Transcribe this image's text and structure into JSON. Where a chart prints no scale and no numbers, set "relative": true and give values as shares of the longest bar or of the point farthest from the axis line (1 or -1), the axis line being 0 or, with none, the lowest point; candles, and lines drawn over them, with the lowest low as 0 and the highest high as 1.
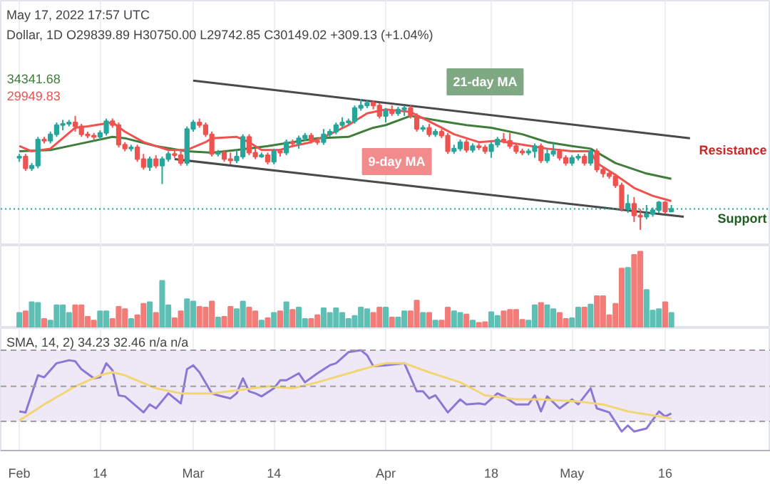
{
  "chart_data": [
    {
      "type": "candlestick",
      "title": "May 17, 2022 17:57 UTC",
      "subtitle": "Dollar, 1D  O29839.89 H30750.00 L29742.85 C30149.02 +309.13 (+1.04%)",
      "relative": true,
      "xlim": [
        "2022-01-29",
        "2022-06-02"
      ],
      "tick_labels": false,
      "grid": "x",
      "x": [
        "2022-02-01",
        "2022-02-02",
        "2022-02-03",
        "2022-02-04",
        "2022-02-05",
        "2022-02-06",
        "2022-02-07",
        "2022-02-08",
        "2022-02-09",
        "2022-02-10",
        "2022-02-11",
        "2022-02-12",
        "2022-02-13",
        "2022-02-14",
        "2022-02-15",
        "2022-02-16",
        "2022-02-17",
        "2022-02-18",
        "2022-02-19",
        "2022-02-20",
        "2022-02-21",
        "2022-02-22",
        "2022-02-23",
        "2022-02-24",
        "2022-02-25",
        "2022-02-26",
        "2022-02-27",
        "2022-02-28",
        "2022-03-01",
        "2022-03-02",
        "2022-03-03",
        "2022-03-04",
        "2022-03-05",
        "2022-03-06",
        "2022-03-07",
        "2022-03-08",
        "2022-03-09",
        "2022-03-10",
        "2022-03-11",
        "2022-03-12",
        "2022-03-13",
        "2022-03-14",
        "2022-03-15",
        "2022-03-16",
        "2022-03-17",
        "2022-03-18",
        "2022-03-19",
        "2022-03-20",
        "2022-03-21",
        "2022-03-22",
        "2022-03-23",
        "2022-03-24",
        "2022-03-25",
        "2022-03-26",
        "2022-03-27",
        "2022-03-28",
        "2022-03-29",
        "2022-03-30",
        "2022-03-31",
        "2022-04-01",
        "2022-04-02",
        "2022-04-03",
        "2022-04-04",
        "2022-04-05",
        "2022-04-06",
        "2022-04-07",
        "2022-04-08",
        "2022-04-09",
        "2022-04-10",
        "2022-04-11",
        "2022-04-12",
        "2022-04-13",
        "2022-04-14",
        "2022-04-15",
        "2022-04-16",
        "2022-04-17",
        "2022-04-18",
        "2022-04-19",
        "2022-04-20",
        "2022-04-21",
        "2022-04-22",
        "2022-04-23",
        "2022-04-24",
        "2022-04-25",
        "2022-04-26",
        "2022-04-27",
        "2022-04-28",
        "2022-04-29",
        "2022-04-30",
        "2022-05-01",
        "2022-05-02",
        "2022-05-03",
        "2022-05-04",
        "2022-05-05",
        "2022-05-06",
        "2022-05-07",
        "2022-05-08",
        "2022-05-09",
        "2022-05-10",
        "2022-05-11",
        "2022-05-12",
        "2022-05-13",
        "2022-05-14",
        "2022-05-15",
        "2022-05-16",
        "2022-05-17"
      ],
      "ohlc": [
        [
          0.55,
          0.58,
          0.52,
          0.56
        ],
        [
          0.56,
          0.58,
          0.45,
          0.47
        ],
        [
          0.47,
          0.51,
          0.45,
          0.49
        ],
        [
          0.49,
          0.71,
          0.47,
          0.69
        ],
        [
          0.69,
          0.71,
          0.66,
          0.68
        ],
        [
          0.68,
          0.75,
          0.66,
          0.73
        ],
        [
          0.73,
          0.82,
          0.71,
          0.8
        ],
        [
          0.8,
          0.84,
          0.76,
          0.81
        ],
        [
          0.81,
          0.84,
          0.79,
          0.82
        ],
        [
          0.82,
          0.87,
          0.75,
          0.79
        ],
        [
          0.79,
          0.81,
          0.71,
          0.73
        ],
        [
          0.73,
          0.75,
          0.7,
          0.72
        ],
        [
          0.72,
          0.74,
          0.69,
          0.71
        ],
        [
          0.71,
          0.76,
          0.69,
          0.74
        ],
        [
          0.74,
          0.85,
          0.72,
          0.83
        ],
        [
          0.83,
          0.85,
          0.78,
          0.8
        ],
        [
          0.8,
          0.82,
          0.63,
          0.65
        ],
        [
          0.65,
          0.67,
          0.6,
          0.62
        ],
        [
          0.62,
          0.65,
          0.6,
          0.63
        ],
        [
          0.63,
          0.65,
          0.52,
          0.54
        ],
        [
          0.54,
          0.58,
          0.46,
          0.48
        ],
        [
          0.48,
          0.56,
          0.45,
          0.54
        ],
        [
          0.54,
          0.57,
          0.47,
          0.49
        ],
        [
          0.49,
          0.56,
          0.35,
          0.54
        ],
        [
          0.54,
          0.6,
          0.52,
          0.58
        ],
        [
          0.58,
          0.61,
          0.55,
          0.57
        ],
        [
          0.57,
          0.6,
          0.49,
          0.51
        ],
        [
          0.51,
          0.79,
          0.49,
          0.77
        ],
        [
          0.77,
          0.84,
          0.75,
          0.82
        ],
        [
          0.82,
          0.85,
          0.78,
          0.8
        ],
        [
          0.8,
          0.82,
          0.71,
          0.73
        ],
        [
          0.73,
          0.75,
          0.56,
          0.58
        ],
        [
          0.58,
          0.61,
          0.56,
          0.59
        ],
        [
          0.59,
          0.61,
          0.52,
          0.54
        ],
        [
          0.54,
          0.59,
          0.5,
          0.53
        ],
        [
          0.53,
          0.61,
          0.51,
          0.56
        ],
        [
          0.56,
          0.73,
          0.54,
          0.71
        ],
        [
          0.71,
          0.73,
          0.57,
          0.59
        ],
        [
          0.59,
          0.62,
          0.54,
          0.56
        ],
        [
          0.56,
          0.59,
          0.55,
          0.57
        ],
        [
          0.57,
          0.59,
          0.5,
          0.52
        ],
        [
          0.52,
          0.62,
          0.5,
          0.6
        ],
        [
          0.6,
          0.62,
          0.56,
          0.59
        ],
        [
          0.59,
          0.69,
          0.57,
          0.67
        ],
        [
          0.67,
          0.69,
          0.64,
          0.66
        ],
        [
          0.66,
          0.72,
          0.62,
          0.7
        ],
        [
          0.7,
          0.74,
          0.68,
          0.72
        ],
        [
          0.72,
          0.74,
          0.66,
          0.68
        ],
        [
          0.68,
          0.7,
          0.65,
          0.67
        ],
        [
          0.67,
          0.77,
          0.65,
          0.73
        ],
        [
          0.73,
          0.77,
          0.71,
          0.75
        ],
        [
          0.75,
          0.82,
          0.73,
          0.8
        ],
        [
          0.8,
          0.86,
          0.78,
          0.82
        ],
        [
          0.82,
          0.85,
          0.8,
          0.83
        ],
        [
          0.83,
          0.95,
          0.81,
          0.93
        ],
        [
          0.93,
          1.0,
          0.91,
          0.95
        ],
        [
          0.95,
          0.99,
          0.93,
          0.97
        ],
        [
          0.97,
          0.99,
          0.92,
          0.95
        ],
        [
          0.95,
          0.97,
          0.85,
          0.87
        ],
        [
          0.87,
          0.93,
          0.82,
          0.91
        ],
        [
          0.91,
          0.95,
          0.87,
          0.89
        ],
        [
          0.89,
          0.94,
          0.87,
          0.92
        ],
        [
          0.92,
          0.95,
          0.87,
          0.93
        ],
        [
          0.93,
          0.95,
          0.85,
          0.87
        ],
        [
          0.87,
          0.89,
          0.75,
          0.77
        ],
        [
          0.77,
          0.8,
          0.75,
          0.78
        ],
        [
          0.78,
          0.81,
          0.71,
          0.73
        ],
        [
          0.73,
          0.77,
          0.71,
          0.75
        ],
        [
          0.75,
          0.77,
          0.7,
          0.72
        ],
        [
          0.72,
          0.74,
          0.58,
          0.6
        ],
        [
          0.6,
          0.65,
          0.58,
          0.62
        ],
        [
          0.62,
          0.69,
          0.6,
          0.67
        ],
        [
          0.67,
          0.69,
          0.59,
          0.61
        ],
        [
          0.61,
          0.66,
          0.59,
          0.64
        ],
        [
          0.64,
          0.66,
          0.61,
          0.63
        ],
        [
          0.63,
          0.65,
          0.58,
          0.6
        ],
        [
          0.6,
          0.67,
          0.55,
          0.65
        ],
        [
          0.65,
          0.71,
          0.63,
          0.69
        ],
        [
          0.69,
          0.74,
          0.66,
          0.68
        ],
        [
          0.68,
          0.74,
          0.62,
          0.64
        ],
        [
          0.64,
          0.66,
          0.58,
          0.6
        ],
        [
          0.6,
          0.62,
          0.57,
          0.59
        ],
        [
          0.59,
          0.62,
          0.57,
          0.6
        ],
        [
          0.6,
          0.66,
          0.55,
          0.64
        ],
        [
          0.64,
          0.66,
          0.51,
          0.53
        ],
        [
          0.53,
          0.62,
          0.51,
          0.58
        ],
        [
          0.58,
          0.66,
          0.56,
          0.6
        ],
        [
          0.6,
          0.62,
          0.53,
          0.55
        ],
        [
          0.55,
          0.57,
          0.49,
          0.51
        ],
        [
          0.51,
          0.57,
          0.49,
          0.55
        ],
        [
          0.55,
          0.58,
          0.53,
          0.56
        ],
        [
          0.56,
          0.58,
          0.49,
          0.51
        ],
        [
          0.51,
          0.62,
          0.49,
          0.6
        ],
        [
          0.6,
          0.62,
          0.44,
          0.46
        ],
        [
          0.46,
          0.48,
          0.4,
          0.43
        ],
        [
          0.43,
          0.45,
          0.39,
          0.41
        ],
        [
          0.41,
          0.43,
          0.32,
          0.34
        ],
        [
          0.34,
          0.36,
          0.14,
          0.16
        ],
        [
          0.16,
          0.27,
          0.13,
          0.2
        ],
        [
          0.2,
          0.25,
          0.06,
          0.11
        ],
        [
          0.11,
          0.16,
          0.0,
          0.1
        ],
        [
          0.1,
          0.19,
          0.08,
          0.12
        ],
        [
          0.12,
          0.17,
          0.1,
          0.15
        ],
        [
          0.15,
          0.22,
          0.13,
          0.21
        ],
        [
          0.21,
          0.22,
          0.12,
          0.14
        ],
        [
          0.14,
          0.19,
          0.14,
          0.16
        ]
      ],
      "colors": [
        "#26a69a",
        "#ef5350",
        "#26a69a",
        "#26a69a",
        "#ef5350",
        "#26a69a",
        "#26a69a",
        "#26a69a",
        "#26a69a",
        "#ef5350",
        "#ef5350",
        "#ef5350",
        "#ef5350",
        "#26a69a",
        "#26a69a",
        "#ef5350",
        "#ef5350",
        "#ef5350",
        "#26a69a",
        "#ef5350",
        "#ef5350",
        "#26a69a",
        "#ef5350",
        "#26a69a",
        "#26a69a",
        "#ef5350",
        "#ef5350",
        "#26a69a",
        "#26a69a",
        "#ef5350",
        "#ef5350",
        "#ef5350",
        "#26a69a",
        "#ef5350",
        "#ef5350",
        "#26a69a",
        "#26a69a",
        "#ef5350",
        "#ef5350",
        "#26a69a",
        "#ef5350",
        "#26a69a",
        "#ef5350",
        "#26a69a",
        "#ef5350",
        "#26a69a",
        "#26a69a",
        "#ef5350",
        "#ef5350",
        "#26a69a",
        "#26a69a",
        "#26a69a",
        "#26a69a",
        "#26a69a",
        "#26a69a",
        "#26a69a",
        "#26a69a",
        "#ef5350",
        "#ef5350",
        "#26a69a",
        "#ef5350",
        "#26a69a",
        "#26a69a",
        "#ef5350",
        "#ef5350",
        "#26a69a",
        "#ef5350",
        "#26a69a",
        "#ef5350",
        "#ef5350",
        "#26a69a",
        "#26a69a",
        "#ef5350",
        "#26a69a",
        "#ef5350",
        "#ef5350",
        "#26a69a",
        "#26a69a",
        "#ef5350",
        "#ef5350",
        "#ef5350",
        "#ef5350",
        "#26a69a",
        "#26a69a",
        "#ef5350",
        "#26a69a",
        "#26a69a",
        "#ef5350",
        "#ef5350",
        "#26a69a",
        "#26a69a",
        "#ef5350",
        "#26a69a",
        "#ef5350",
        "#ef5350",
        "#ef5350",
        "#ef5350",
        "#ef5350",
        "#26a69a",
        "#ef5350",
        "#ef5350",
        "#26a69a",
        "#26a69a",
        "#26a69a",
        "#ef5350",
        "#26a69a"
      ],
      "series": [
        {
          "type": "line",
          "color": "#3f7d3a",
          "x": [
            "2022-02-01",
            "2022-02-06",
            "2022-02-10",
            "2022-02-16",
            "2022-02-18",
            "2022-02-23",
            "2022-02-28",
            "2022-03-04",
            "2022-03-08",
            "2022-03-13",
            "2022-03-17",
            "2022-03-21",
            "2022-03-26",
            "2022-03-30",
            "2022-04-01",
            "2022-04-05",
            "2022-04-10",
            "2022-04-14",
            "2022-04-18",
            "2022-04-23",
            "2022-04-27",
            "2022-05-01",
            "2022-05-04",
            "2022-05-08",
            "2022-05-13",
            "2022-05-17"
          ],
          "values": [
            0.6,
            0.61,
            0.65,
            0.71,
            0.7,
            0.64,
            0.6,
            0.59,
            0.61,
            0.64,
            0.67,
            0.7,
            0.71,
            0.78,
            0.8,
            0.87,
            0.83,
            0.8,
            0.78,
            0.73,
            0.67,
            0.64,
            0.62,
            0.51,
            0.43,
            0.39
          ]
        },
        {
          "type": "line",
          "color": "#f0524f",
          "x": [
            "2022-02-01",
            "2022-02-03",
            "2022-02-06",
            "2022-02-10",
            "2022-02-12",
            "2022-02-16",
            "2022-02-18",
            "2022-02-21",
            "2022-02-25",
            "2022-02-28",
            "2022-03-03",
            "2022-03-04",
            "2022-03-08",
            "2022-03-10",
            "2022-03-12",
            "2022-03-15",
            "2022-03-17",
            "2022-03-20",
            "2022-03-23",
            "2022-03-26",
            "2022-03-29",
            "2022-04-01",
            "2022-04-05",
            "2022-04-10",
            "2022-04-12",
            "2022-04-16",
            "2022-04-19",
            "2022-04-23",
            "2022-04-27",
            "2022-05-01",
            "2022-05-04",
            "2022-05-05",
            "2022-05-08",
            "2022-05-11",
            "2022-05-14",
            "2022-05-17"
          ],
          "values": [
            0.64,
            0.6,
            0.62,
            0.78,
            0.79,
            0.82,
            0.75,
            0.67,
            0.61,
            0.61,
            0.67,
            0.7,
            0.71,
            0.67,
            0.61,
            0.61,
            0.64,
            0.67,
            0.73,
            0.8,
            0.89,
            0.92,
            0.9,
            0.78,
            0.73,
            0.67,
            0.68,
            0.65,
            0.62,
            0.6,
            0.6,
            0.51,
            0.42,
            0.32,
            0.26,
            0.22
          ]
        },
        {
          "type": "line",
          "color": "#4a4a4a",
          "x": [
            "2022-03-01",
            "2022-05-20"
          ],
          "values": [
            1.14,
            0.7
          ]
        },
        {
          "type": "line",
          "color": "#4a4a4a",
          "x": [
            "2022-02-26",
            "2022-05-19"
          ],
          "values": [
            0.54,
            0.1
          ]
        }
      ],
      "ref_lines": [
        {
          "axis": "y",
          "value": 0.16,
          "color": "#26a69a",
          "line_style": "dotted"
        }
      ],
      "xticks": [
        {
          "value": "2022-02-01",
          "label": null
        },
        {
          "value": "2022-02-14",
          "label": null
        },
        {
          "value": "2022-03-01",
          "label": null
        },
        {
          "value": "2022-03-14",
          "label": null
        },
        {
          "value": "2022-04-01",
          "label": null
        },
        {
          "value": "2022-04-18",
          "label": null
        },
        {
          "value": "2022-05-01",
          "label": null
        },
        {
          "value": "2022-05-16",
          "label": null
        }
      ],
      "annotations": [
        "34341.68",
        "29949.83",
        "Resistance",
        "Support",
        "9-day MA",
        "21-day MA"
      ]
    },
    {
      "type": "bar",
      "relative": true,
      "xlim": [
        "2022-01-29",
        "2022-06-02"
      ],
      "tick_labels": false,
      "grid": "x",
      "xticks": [
        {
          "value": "2022-02-01",
          "label": null
        },
        {
          "value": "2022-02-14",
          "label": null
        },
        {
          "value": "2022-03-01",
          "label": null
        },
        {
          "value": "2022-03-14",
          "label": null
        },
        {
          "value": "2022-04-01",
          "label": null
        },
        {
          "value": "2022-04-18",
          "label": null
        },
        {
          "value": "2022-05-01",
          "label": null
        },
        {
          "value": "2022-05-16",
          "label": null
        }
      ],
      "x": [
        "2022-02-01",
        "2022-02-02",
        "2022-02-03",
        "2022-02-04",
        "2022-02-05",
        "2022-02-06",
        "2022-02-07",
        "2022-02-08",
        "2022-02-09",
        "2022-02-10",
        "2022-02-11",
        "2022-02-12",
        "2022-02-13",
        "2022-02-14",
        "2022-02-15",
        "2022-02-16",
        "2022-02-17",
        "2022-02-18",
        "2022-02-19",
        "2022-02-20",
        "2022-02-21",
        "2022-02-22",
        "2022-02-23",
        "2022-02-24",
        "2022-02-25",
        "2022-02-26",
        "2022-02-27",
        "2022-02-28",
        "2022-03-01",
        "2022-03-02",
        "2022-03-03",
        "2022-03-04",
        "2022-03-05",
        "2022-03-06",
        "2022-03-07",
        "2022-03-08",
        "2022-03-09",
        "2022-03-10",
        "2022-03-11",
        "2022-03-12",
        "2022-03-13",
        "2022-03-14",
        "2022-03-15",
        "2022-03-16",
        "2022-03-17",
        "2022-03-18",
        "2022-03-19",
        "2022-03-20",
        "2022-03-21",
        "2022-03-22",
        "2022-03-23",
        "2022-03-24",
        "2022-03-25",
        "2022-03-26",
        "2022-03-27",
        "2022-03-28",
        "2022-03-29",
        "2022-03-30",
        "2022-03-31",
        "2022-04-01",
        "2022-04-02",
        "2022-04-03",
        "2022-04-04",
        "2022-04-05",
        "2022-04-06",
        "2022-04-07",
        "2022-04-08",
        "2022-04-09",
        "2022-04-10",
        "2022-04-11",
        "2022-04-12",
        "2022-04-13",
        "2022-04-14",
        "2022-04-15",
        "2022-04-16",
        "2022-04-17",
        "2022-04-18",
        "2022-04-19",
        "2022-04-20",
        "2022-04-21",
        "2022-04-22",
        "2022-04-23",
        "2022-04-24",
        "2022-04-25",
        "2022-04-26",
        "2022-04-27",
        "2022-04-28",
        "2022-04-29",
        "2022-04-30",
        "2022-05-01",
        "2022-05-02",
        "2022-05-03",
        "2022-05-04",
        "2022-05-05",
        "2022-05-06",
        "2022-05-07",
        "2022-05-08",
        "2022-05-09",
        "2022-05-10",
        "2022-05-11",
        "2022-05-12",
        "2022-05-13",
        "2022-05-14",
        "2022-05-15",
        "2022-05-16",
        "2022-05-17"
      ],
      "values": [
        0.2,
        0.22,
        0.34,
        0.33,
        0.12,
        0.1,
        0.3,
        0.3,
        0.2,
        0.3,
        0.3,
        0.15,
        0.1,
        0.22,
        0.22,
        0.12,
        0.28,
        0.25,
        0.12,
        0.17,
        0.32,
        0.34,
        0.2,
        0.62,
        0.3,
        0.13,
        0.22,
        0.38,
        0.35,
        0.28,
        0.27,
        0.35,
        0.14,
        0.15,
        0.28,
        0.25,
        0.35,
        0.27,
        0.22,
        0.1,
        0.13,
        0.2,
        0.22,
        0.34,
        0.24,
        0.27,
        0.12,
        0.12,
        0.17,
        0.26,
        0.2,
        0.26,
        0.2,
        0.12,
        0.16,
        0.27,
        0.25,
        0.2,
        0.27,
        0.27,
        0.14,
        0.14,
        0.22,
        0.22,
        0.36,
        0.2,
        0.2,
        0.1,
        0.1,
        0.27,
        0.22,
        0.2,
        0.18,
        0.1,
        0.07,
        0.08,
        0.21,
        0.16,
        0.22,
        0.24,
        0.24,
        0.11,
        0.1,
        0.3,
        0.33,
        0.3,
        0.25,
        0.2,
        0.12,
        0.13,
        0.27,
        0.27,
        0.31,
        0.42,
        0.42,
        0.17,
        0.32,
        0.78,
        0.79,
        0.96,
        1.0,
        0.5,
        0.23,
        0.25,
        0.34,
        0.2
      ],
      "colors": [
        "#5fbfb4",
        "#f27c78",
        "#5fbfb4",
        "#5fbfb4",
        "#f27c78",
        "#5fbfb4",
        "#5fbfb4",
        "#5fbfb4",
        "#5fbfb4",
        "#f27c78",
        "#f27c78",
        "#f27c78",
        "#f27c78",
        "#5fbfb4",
        "#5fbfb4",
        "#f27c78",
        "#f27c78",
        "#f27c78",
        "#5fbfb4",
        "#f27c78",
        "#f27c78",
        "#5fbfb4",
        "#f27c78",
        "#5fbfb4",
        "#5fbfb4",
        "#f27c78",
        "#f27c78",
        "#5fbfb4",
        "#5fbfb4",
        "#f27c78",
        "#f27c78",
        "#f27c78",
        "#5fbfb4",
        "#f27c78",
        "#f27c78",
        "#5fbfb4",
        "#5fbfb4",
        "#f27c78",
        "#f27c78",
        "#5fbfb4",
        "#f27c78",
        "#5fbfb4",
        "#f27c78",
        "#5fbfb4",
        "#f27c78",
        "#5fbfb4",
        "#5fbfb4",
        "#f27c78",
        "#f27c78",
        "#5fbfb4",
        "#5fbfb4",
        "#5fbfb4",
        "#5fbfb4",
        "#5fbfb4",
        "#5fbfb4",
        "#5fbfb4",
        "#5fbfb4",
        "#f27c78",
        "#f27c78",
        "#5fbfb4",
        "#f27c78",
        "#5fbfb4",
        "#5fbfb4",
        "#f27c78",
        "#f27c78",
        "#5fbfb4",
        "#f27c78",
        "#5fbfb4",
        "#f27c78",
        "#f27c78",
        "#5fbfb4",
        "#5fbfb4",
        "#f27c78",
        "#5fbfb4",
        "#f27c78",
        "#f27c78",
        "#5fbfb4",
        "#5fbfb4",
        "#f27c78",
        "#f27c78",
        "#f27c78",
        "#f27c78",
        "#5fbfb4",
        "#5fbfb4",
        "#f27c78",
        "#5fbfb4",
        "#5fbfb4",
        "#f27c78",
        "#f27c78",
        "#5fbfb4",
        "#5fbfb4",
        "#f27c78",
        "#5fbfb4",
        "#f27c78",
        "#f27c78",
        "#f27c78",
        "#f27c78",
        "#f27c78",
        "#5fbfb4",
        "#f27c78",
        "#f27c78",
        "#5fbfb4",
        "#5fbfb4",
        "#5fbfb4",
        "#f27c78",
        "#5fbfb4"
      ]
    },
    {
      "type": "line",
      "title": "SMA, 14, 2)  34.23  32.46  n/a  n/a",
      "relative": true,
      "xlim": [
        "2022-01-29",
        "2022-06-02"
      ],
      "tick_labels": "x",
      "grid": "x",
      "xticks": [
        {
          "value": "2022-02-01",
          "label": "Feb"
        },
        {
          "value": "2022-02-14",
          "label": "14"
        },
        {
          "value": "2022-03-01",
          "label": "Mar"
        },
        {
          "value": "2022-03-14",
          "label": "14"
        },
        {
          "value": "2022-04-01",
          "label": "Apr"
        },
        {
          "value": "2022-04-18",
          "label": "18"
        },
        {
          "value": "2022-05-01",
          "label": "May"
        },
        {
          "value": "2022-05-16",
          "label": "16"
        }
      ],
      "series": [
        {
          "color": "#8c76d6",
          "x": [
            "2022-02-01",
            "2022-02-02",
            "2022-02-04",
            "2022-02-05",
            "2022-02-07",
            "2022-02-09",
            "2022-02-10",
            "2022-02-11",
            "2022-02-13",
            "2022-02-14",
            "2022-02-15",
            "2022-02-16",
            "2022-02-17",
            "2022-02-18",
            "2022-02-21",
            "2022-02-22",
            "2022-02-23",
            "2022-02-25",
            "2022-02-27",
            "2022-02-28",
            "2022-03-01",
            "2022-03-02",
            "2022-03-04",
            "2022-03-05",
            "2022-03-07",
            "2022-03-08",
            "2022-03-09",
            "2022-03-10",
            "2022-03-11",
            "2022-03-12",
            "2022-03-14",
            "2022-03-15",
            "2022-03-16",
            "2022-03-18",
            "2022-03-19",
            "2022-03-21",
            "2022-03-23",
            "2022-03-24",
            "2022-03-26",
            "2022-03-28",
            "2022-03-29",
            "2022-03-30",
            "2022-04-01",
            "2022-04-04",
            "2022-04-06",
            "2022-04-07",
            "2022-04-08",
            "2022-04-09",
            "2022-04-11",
            "2022-04-13",
            "2022-04-14",
            "2022-04-16",
            "2022-04-17",
            "2022-04-19",
            "2022-04-20",
            "2022-04-22",
            "2022-04-24",
            "2022-04-25",
            "2022-04-26",
            "2022-04-27",
            "2022-04-29",
            "2022-05-01",
            "2022-05-02",
            "2022-05-04",
            "2022-05-05",
            "2022-05-07",
            "2022-05-09",
            "2022-05-10",
            "2022-05-11",
            "2022-05-13",
            "2022-05-15",
            "2022-05-16",
            "2022-05-17"
          ],
          "values": [
            0.39,
            0.38,
            0.75,
            0.73,
            0.87,
            0.9,
            0.89,
            0.81,
            0.72,
            0.73,
            0.87,
            0.8,
            0.55,
            0.54,
            0.38,
            0.46,
            0.42,
            0.57,
            0.47,
            0.81,
            0.85,
            0.78,
            0.57,
            0.55,
            0.52,
            0.57,
            0.72,
            0.59,
            0.57,
            0.54,
            0.62,
            0.7,
            0.7,
            0.77,
            0.68,
            0.77,
            0.85,
            0.87,
            0.98,
            1.0,
            0.95,
            0.84,
            0.85,
            0.87,
            0.59,
            0.59,
            0.52,
            0.55,
            0.38,
            0.51,
            0.46,
            0.47,
            0.46,
            0.57,
            0.54,
            0.46,
            0.46,
            0.55,
            0.39,
            0.54,
            0.42,
            0.51,
            0.46,
            0.62,
            0.42,
            0.38,
            0.19,
            0.25,
            0.19,
            0.22,
            0.39,
            0.34,
            0.37
          ]
        },
        {
          "color": "#f2d675",
          "x": [
            "2022-02-01",
            "2022-02-05",
            "2022-02-10",
            "2022-02-14",
            "2022-02-16",
            "2022-02-18",
            "2022-02-23",
            "2022-02-27",
            "2022-03-04",
            "2022-03-08",
            "2022-03-13",
            "2022-03-17",
            "2022-03-21",
            "2022-03-26",
            "2022-03-30",
            "2022-04-01",
            "2022-04-04",
            "2022-04-08",
            "2022-04-13",
            "2022-04-17",
            "2022-04-22",
            "2022-04-26",
            "2022-05-02",
            "2022-05-06",
            "2022-05-10",
            "2022-05-15",
            "2022-05-17"
          ],
          "values": [
            0.3,
            0.46,
            0.64,
            0.75,
            0.78,
            0.75,
            0.62,
            0.57,
            0.57,
            0.6,
            0.64,
            0.62,
            0.68,
            0.77,
            0.84,
            0.87,
            0.87,
            0.78,
            0.68,
            0.55,
            0.51,
            0.51,
            0.49,
            0.46,
            0.39,
            0.34,
            0.32
          ]
        }
      ],
      "bands": [
        {
          "axis": "y",
          "from": 0.29,
          "to": 1.0,
          "color": "#ede7f6"
        }
      ],
      "ref_lines": [
        {
          "axis": "y",
          "value": 1.0,
          "color": "#9e9e9e",
          "line_style": "dashed"
        },
        {
          "axis": "y",
          "value": 0.64,
          "color": "#9e9e9e",
          "line_style": "dashed"
        },
        {
          "axis": "y",
          "value": 0.29,
          "color": "#9e9e9e",
          "line_style": "dashed"
        }
      ]
    }
  ]
}
